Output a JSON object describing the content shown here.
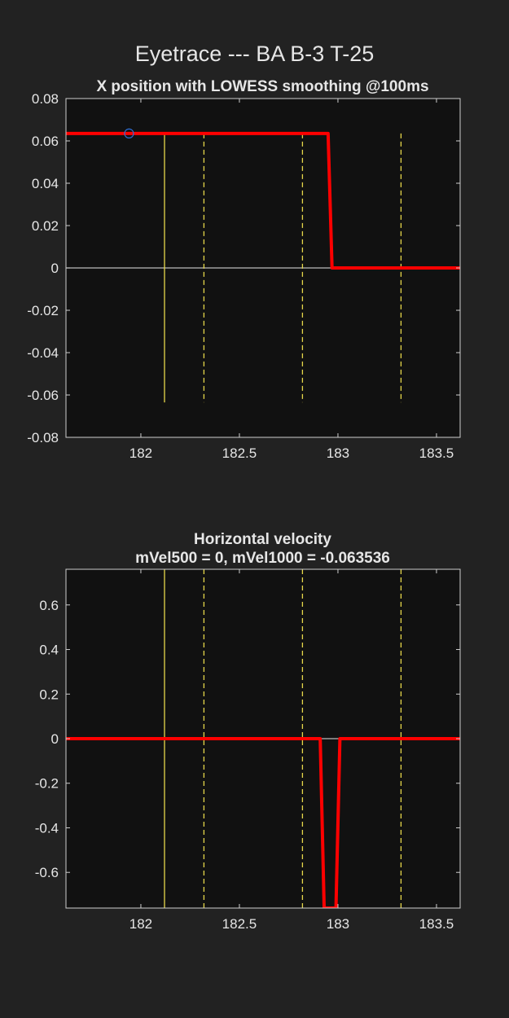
{
  "figure": {
    "title": "Eyetrace --- BA B-3 T-25"
  },
  "chart_data": [
    {
      "type": "line",
      "title": "X position with LOWESS smoothing @100ms",
      "subtitle": "",
      "xlabel": "",
      "ylabel": "",
      "xlim": [
        181.62,
        183.62
      ],
      "ylim": [
        -0.08,
        0.08
      ],
      "grid": false,
      "x_ticks": [
        182,
        182.5,
        183,
        183.5
      ],
      "x_tick_labels": [
        "182",
        "182.5",
        "183",
        "183.5"
      ],
      "y_ticks": [
        0.08,
        0.06,
        0.04,
        0.02,
        0,
        -0.02,
        -0.04,
        -0.06,
        -0.08
      ],
      "y_tick_labels": [
        "0.08",
        "0.06",
        "0.04",
        "0.02",
        "0",
        "-0.02",
        "-0.04",
        "-0.06",
        "-0.08"
      ],
      "series": [
        {
          "color": "#ff0000",
          "x": [
            181.62,
            182.0,
            182.5,
            182.95,
            182.97,
            183.0,
            183.5,
            183.62
          ],
          "y": [
            0.0635,
            0.0635,
            0.0635,
            0.0635,
            0.0,
            0.0,
            0.0,
            0.0
          ]
        }
      ],
      "markers": [
        {
          "shape": "circle",
          "color": "#2f6fd6",
          "x": 181.94,
          "y": 0.0635
        }
      ],
      "reference_lines": [
        {
          "orientation": "horizontal",
          "y": 0,
          "color": "#bdbdbd",
          "style": "solid"
        }
      ],
      "vertical_lines": [
        {
          "x": 182.12,
          "color": "#e6d84a",
          "style": "solid",
          "y_range": [
            -0.0635,
            0.0635
          ]
        },
        {
          "x": 182.32,
          "color": "#e6d84a",
          "style": "dashed",
          "y_range": [
            -0.0635,
            0.0635
          ]
        },
        {
          "x": 182.82,
          "color": "#e6d84a",
          "style": "dashed",
          "y_range": [
            -0.0635,
            0.0635
          ]
        },
        {
          "x": 183.32,
          "color": "#e6d84a",
          "style": "dashed",
          "y_range": [
            -0.0635,
            0.0635
          ]
        }
      ]
    },
    {
      "type": "line",
      "title": "Horizontal velocity",
      "subtitle": "mVel500 = 0, mVel1000 = -0.063536",
      "xlabel": "",
      "ylabel": "",
      "xlim": [
        181.62,
        183.62
      ],
      "ylim": [
        -0.76,
        0.76
      ],
      "grid": false,
      "x_ticks": [
        182,
        182.5,
        183,
        183.5
      ],
      "x_tick_labels": [
        "182",
        "182.5",
        "183",
        "183.5"
      ],
      "y_ticks": [
        0.6,
        0.4,
        0.2,
        0,
        -0.2,
        -0.4,
        -0.6
      ],
      "y_tick_labels": [
        "0.6",
        "0.4",
        "0.2",
        "0",
        "-0.2",
        "-0.4",
        "-0.6"
      ],
      "series": [
        {
          "color": "#ff0000",
          "x": [
            181.62,
            182.0,
            182.5,
            182.91,
            182.93,
            182.99,
            183.01,
            183.5,
            183.62
          ],
          "y": [
            0,
            0,
            0,
            0,
            -0.76,
            -0.76,
            0,
            0,
            0
          ]
        }
      ],
      "markers": [],
      "reference_lines": [
        {
          "orientation": "horizontal",
          "y": 0,
          "color": "#bdbdbd",
          "style": "solid"
        }
      ],
      "vertical_lines": [
        {
          "x": 182.12,
          "color": "#e6d84a",
          "style": "solid",
          "y_range": [
            -0.76,
            0.76
          ]
        },
        {
          "x": 182.32,
          "color": "#e6d84a",
          "style": "dashed",
          "y_range": [
            -0.76,
            0.76
          ]
        },
        {
          "x": 182.82,
          "color": "#e6d84a",
          "style": "dashed",
          "y_range": [
            -0.76,
            0.76
          ]
        },
        {
          "x": 183.32,
          "color": "#e6d84a",
          "style": "dashed",
          "y_range": [
            -0.76,
            0.76
          ]
        }
      ]
    }
  ]
}
